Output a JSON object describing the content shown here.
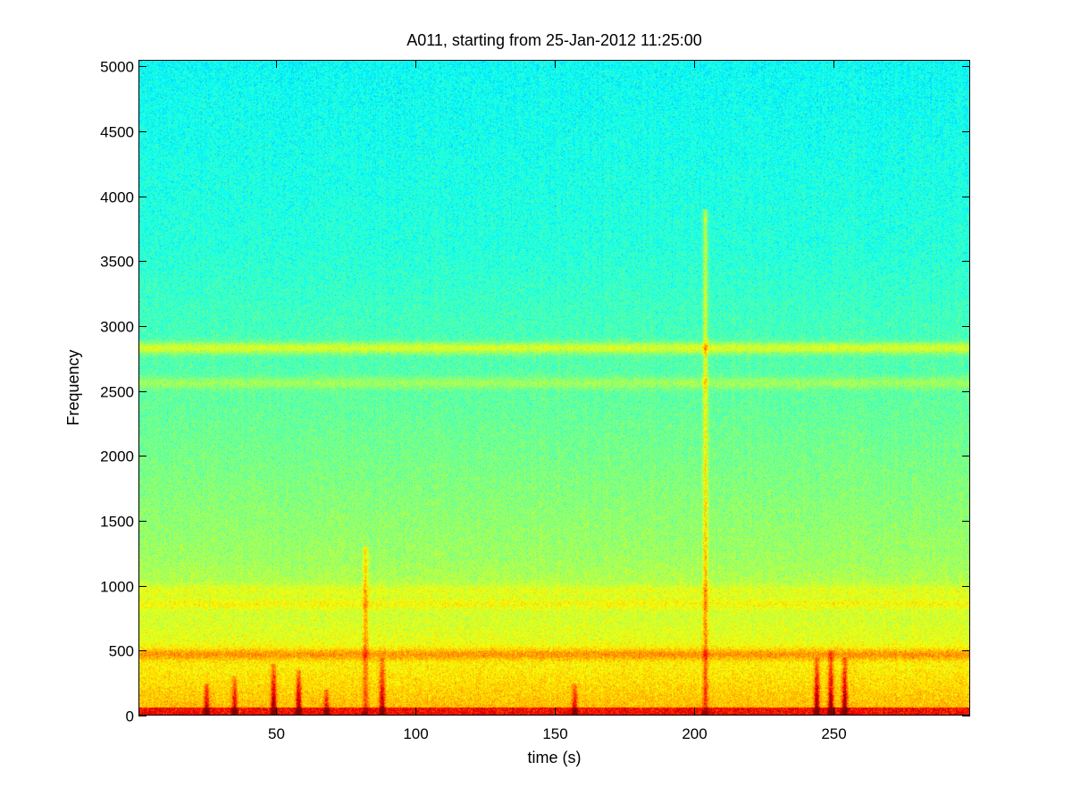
{
  "chart_data": {
    "type": "heatmap",
    "title": "A011, starting from 25-Jan-2012 11:25:00",
    "xlabel": "time (s)",
    "ylabel": "Frequency",
    "xlim": [
      0.5,
      299
    ],
    "ylim": [
      0,
      5050
    ],
    "x_ticks": [
      50,
      100,
      150,
      200,
      250
    ],
    "y_ticks": [
      0,
      500,
      1000,
      1500,
      2000,
      2500,
      3000,
      3500,
      4000,
      4500,
      5000
    ],
    "colormap": "jet",
    "colors": {
      "high": "#b01010",
      "upper": "#ffff00",
      "mid": "#7fff7f",
      "low": "#2ee8c8",
      "floor": "#1a8cff"
    },
    "spectral_features": {
      "horizontal_bands": [
        {
          "frequency": 2830,
          "intensity": 0.68
        },
        {
          "frequency": 2560,
          "intensity": 0.58
        },
        {
          "frequency": 960,
          "intensity": 0.63
        },
        {
          "frequency": 860,
          "intensity": 0.66
        },
        {
          "frequency": 470,
          "intensity": 0.8
        }
      ],
      "vertical_transients": [
        {
          "time": 25,
          "top_frequency": 250,
          "intensity": 0.9
        },
        {
          "time": 35,
          "top_frequency": 300,
          "intensity": 0.85
        },
        {
          "time": 49,
          "top_frequency": 400,
          "intensity": 0.95
        },
        {
          "time": 58,
          "top_frequency": 350,
          "intensity": 0.95
        },
        {
          "time": 68,
          "top_frequency": 200,
          "intensity": 0.85
        },
        {
          "time": 82,
          "top_frequency": 1300,
          "intensity": 0.8
        },
        {
          "time": 88,
          "top_frequency": 450,
          "intensity": 0.9
        },
        {
          "time": 157,
          "top_frequency": 250,
          "intensity": 0.85
        },
        {
          "time": 204,
          "top_frequency": 3900,
          "intensity": 0.85
        },
        {
          "time": 244,
          "top_frequency": 450,
          "intensity": 0.95
        },
        {
          "time": 249,
          "top_frequency": 500,
          "intensity": 0.95
        },
        {
          "time": 254,
          "top_frequency": 450,
          "intensity": 0.95
        }
      ]
    }
  }
}
